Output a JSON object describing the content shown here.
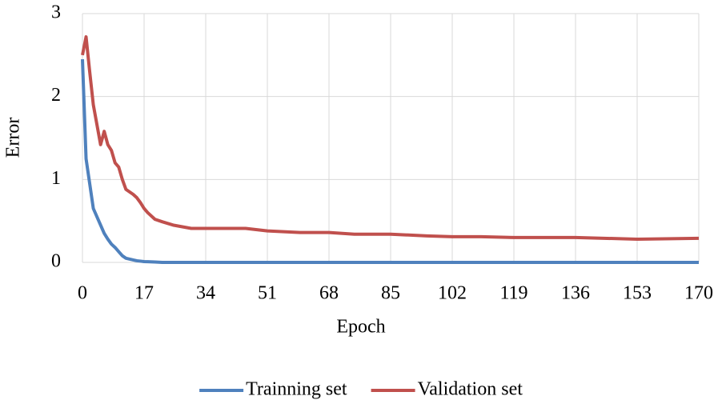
{
  "chart_data": {
    "type": "line",
    "x_label": "Epoch",
    "y_label": "Error",
    "x": [
      0,
      1,
      2,
      3,
      5,
      6,
      7,
      8,
      9,
      10,
      11,
      12,
      14,
      15,
      16,
      17,
      18,
      20,
      22,
      25,
      30,
      34,
      40,
      45,
      51,
      60,
      68,
      75,
      85,
      95,
      102,
      110,
      119,
      136,
      153,
      170
    ],
    "series": [
      {
        "name": "Trainning set",
        "color": "#4f81bd",
        "values": [
          2.45,
          1.25,
          0.95,
          0.65,
          0.45,
          0.35,
          0.28,
          0.22,
          0.18,
          0.13,
          0.08,
          0.05,
          0.03,
          0.02,
          0.015,
          0.01,
          0.008,
          0.005,
          0,
          0,
          0,
          0,
          0,
          0,
          0,
          0,
          0,
          0,
          0,
          0,
          0,
          0,
          0,
          0,
          0,
          0
        ]
      },
      {
        "name": "Validation set",
        "color": "#c0504d",
        "values": [
          2.5,
          2.72,
          2.3,
          1.9,
          1.42,
          1.58,
          1.42,
          1.35,
          1.2,
          1.15,
          1.0,
          0.88,
          0.82,
          0.78,
          0.72,
          0.65,
          0.6,
          0.52,
          0.49,
          0.45,
          0.41,
          0.41,
          0.41,
          0.41,
          0.38,
          0.36,
          0.36,
          0.34,
          0.34,
          0.32,
          0.31,
          0.31,
          0.3,
          0.3,
          0.28,
          0.29
        ]
      }
    ],
    "xlim": [
      0,
      170
    ],
    "xticks": [
      0,
      17,
      34,
      51,
      68,
      85,
      102,
      119,
      136,
      153,
      170
    ],
    "ylim": [
      0,
      3
    ],
    "yticks": [
      0,
      1,
      2,
      3
    ],
    "grid": true,
    "legend": "bottom"
  }
}
